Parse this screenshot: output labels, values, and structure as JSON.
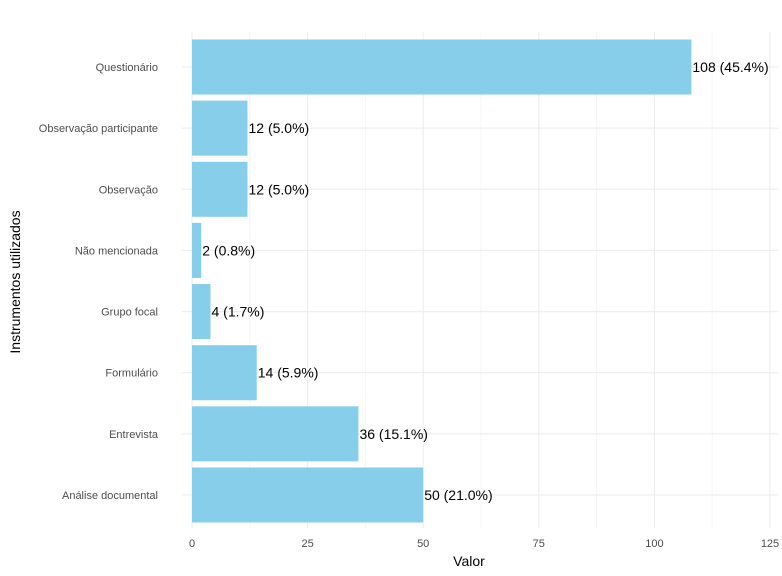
{
  "chart_data": {
    "type": "bar",
    "orientation": "horizontal",
    "categories": [
      "Análise documental",
      "Entrevista",
      "Formulário",
      "Grupo focal",
      "Não mencionada",
      "Observação",
      "Observação participante",
      "Questionário"
    ],
    "values": [
      50,
      36,
      14,
      4,
      2,
      12,
      12,
      108
    ],
    "data_labels": [
      "50 (21.0%)",
      "36 (15.1%)",
      "14 (5.9%)",
      "4 (1.7%)",
      "2 (0.8%)",
      "12 (5.0%)",
      "12 (5.0%)",
      "108 (45.4%)"
    ],
    "xlabel": "Valor",
    "ylabel": "Instrumentos utilizados",
    "xlim": [
      0,
      125
    ],
    "x_ticks": [
      0,
      25,
      50,
      75,
      100,
      125
    ],
    "x_tick_labels": [
      "0",
      "25",
      "50",
      "75",
      "100",
      "125"
    ],
    "grid": true,
    "colors": {
      "bar": "#87CEEB",
      "grid_major": "#ebebeb",
      "grid_minor": "#f5f5f5"
    }
  }
}
